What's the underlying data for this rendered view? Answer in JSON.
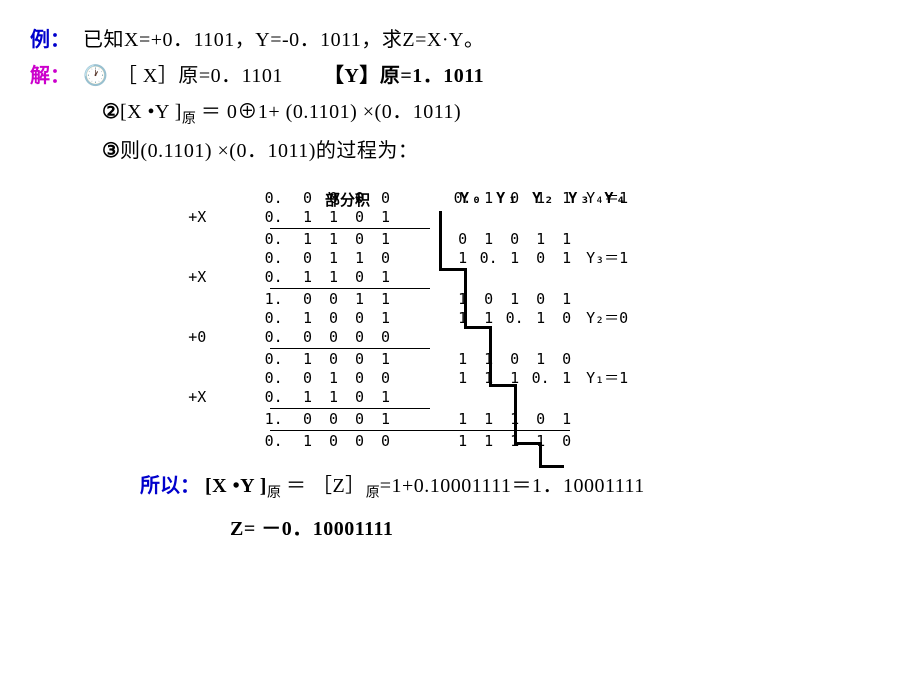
{
  "title_line": {
    "label": "例：",
    "text": "已知X=+0．1101，Y=-0．1011，求Z=X·Y。"
  },
  "sol_label": "解：",
  "step1": {
    "marker": "🕐",
    "xraw": "［ X］原=0．1101",
    "yraw": "【Y】原=1．1011"
  },
  "step2": {
    "marker": "②",
    "text_a": "[X •Y ]",
    "sub": "原",
    "text_b": "＝ 0⊕1+ (0.1101) ×(0．1011)"
  },
  "step3": {
    "marker": "③",
    "text": "则(0.1101) ×(0．1011)的过程为："
  },
  "diagram": {
    "hdr_partial": "部分积",
    "hdr_y": "Y₀ Y₁ Y₂ Y₃ Y₄",
    "plus_x": "+X",
    "plus_0": "+0",
    "rows": [
      {
        "lab": "",
        "l": [
          "0.",
          "0",
          "0",
          "0",
          "0"
        ],
        "r": [
          "0.",
          "1",
          "0",
          "1",
          "1"
        ],
        "note": "Y₄＝1"
      },
      {
        "lab": "+X",
        "l": [
          "0.",
          "1",
          "1",
          "0",
          "1"
        ],
        "r": [
          "",
          "",
          "",
          "",
          ""
        ],
        "note": ""
      },
      {
        "lab": "",
        "l": [
          "0.",
          "1",
          "1",
          "0",
          "1"
        ],
        "r": [
          "0",
          "1",
          "0",
          "1",
          "1"
        ],
        "note": ""
      },
      {
        "lab": "",
        "l": [
          "0.",
          "0",
          "1",
          "1",
          "0"
        ],
        "r": [
          "1",
          "0.",
          "1",
          "0",
          "1"
        ],
        "note": "Y₃＝1"
      },
      {
        "lab": "+X",
        "l": [
          "0.",
          "1",
          "1",
          "0",
          "1"
        ],
        "r": [
          "",
          "",
          "",
          "",
          ""
        ],
        "note": ""
      },
      {
        "lab": "",
        "l": [
          "1.",
          "0",
          "0",
          "1",
          "1"
        ],
        "r": [
          "1",
          "0",
          "1",
          "0",
          "1"
        ],
        "note": ""
      },
      {
        "lab": "",
        "l": [
          "0.",
          "1",
          "0",
          "0",
          "1"
        ],
        "r": [
          "1",
          "1",
          "0.",
          "1",
          "0"
        ],
        "note": "Y₂＝0"
      },
      {
        "lab": "+0",
        "l": [
          "0.",
          "0",
          "0",
          "0",
          "0"
        ],
        "r": [
          "",
          "",
          "",
          "",
          ""
        ],
        "note": ""
      },
      {
        "lab": "",
        "l": [
          "0.",
          "1",
          "0",
          "0",
          "1"
        ],
        "r": [
          "1",
          "1",
          "0",
          "1",
          "0"
        ],
        "note": ""
      },
      {
        "lab": "",
        "l": [
          "0.",
          "0",
          "1",
          "0",
          "0"
        ],
        "r": [
          "1",
          "1",
          "1",
          "0.",
          "1"
        ],
        "note": "Y₁＝1"
      },
      {
        "lab": "+X",
        "l": [
          "0.",
          "1",
          "1",
          "0",
          "1"
        ],
        "r": [
          "",
          "",
          "",
          "",
          ""
        ],
        "note": ""
      },
      {
        "lab": "",
        "l": [
          "1.",
          "0",
          "0",
          "0",
          "1"
        ],
        "r": [
          "1",
          "1",
          "1",
          "0",
          "1"
        ],
        "note": ""
      },
      {
        "lab": "",
        "l": [
          "0.",
          "1",
          "0",
          "0",
          "0"
        ],
        "r": [
          "1",
          "1",
          "1",
          "1",
          "0"
        ],
        "note": ""
      }
    ]
  },
  "result1": {
    "label": "所以：",
    "a": "[X •Y ]",
    "sub": "原",
    "b": "＝ ［Z］",
    "sub2": "原",
    "c": "=1+0.10001111＝1．10001111"
  },
  "result2": "Z= －0．10001111"
}
